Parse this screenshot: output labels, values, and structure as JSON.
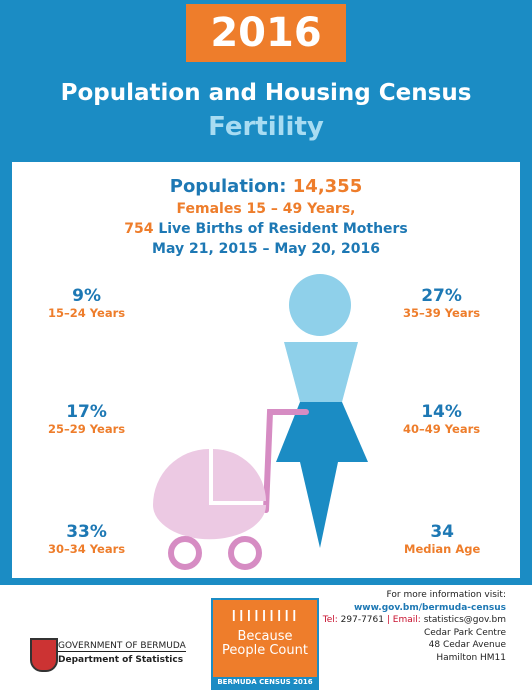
{
  "header": {
    "year": "2016",
    "title": "Population and Housing Census",
    "subtitle": "Fertility"
  },
  "summary": {
    "population_label": "Population:",
    "population": "14,355",
    "line2": "Females 15 – 49 Years,",
    "births": "754",
    "births_label": "Live Births of Resident Mothers",
    "period": "May 21, 2015 – May 20, 2016"
  },
  "stats": [
    {
      "value": "9%",
      "label": "15–24 Years"
    },
    {
      "value": "17%",
      "label": "25–29 Years"
    },
    {
      "value": "33%",
      "label": "30–34 Years"
    },
    {
      "value": "27%",
      "label": "35–39 Years"
    },
    {
      "value": "14%",
      "label": "40–49 Years"
    },
    {
      "value": "34",
      "label": "Median Age"
    }
  ],
  "footer": {
    "info": "For more information visit:",
    "url": "www.gov.bm/bermuda-census",
    "tel_label": "Tel:",
    "tel": "297-7761",
    "sep": "|",
    "email_label": "Email:",
    "email": "statistics@gov.bm",
    "address": [
      "Cedar Park Centre",
      "48 Cedar Avenue",
      "Hamilton HM11"
    ],
    "gov": "GOVERNMENT OF BERMUDA",
    "dept": "Department of Statistics",
    "logo_line1": "Because",
    "logo_line2": "People Count",
    "logo_band": "BERMUDA CENSUS 2016"
  }
}
